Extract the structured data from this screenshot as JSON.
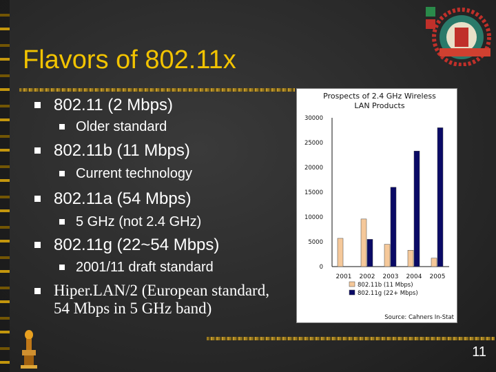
{
  "slide": {
    "title": "Flavors of 802.11x",
    "page_number": "11",
    "bullets": [
      {
        "text": "802.11 (2 Mbps)",
        "sub": "Older standard"
      },
      {
        "text": "802.11b (11 Mbps)",
        "sub": "Current technology"
      },
      {
        "text": "802.11a (54 Mbps)",
        "sub": "5 GHz (not 2.4 GHz)"
      },
      {
        "text": "802.11g (22~54 Mbps)",
        "sub": "2001/11 draft standard"
      }
    ],
    "last_bullet_line1": "Hiper.LAN/2 (European standard,",
    "last_bullet_line2": "54 Mbps in 5 GHz band)"
  },
  "chart_data": {
    "type": "bar",
    "title_line1": "Prospects of 2.4 GHz Wireless",
    "title_line2": "LAN Products",
    "categories": [
      "2001",
      "2002",
      "2003",
      "2004",
      "2005"
    ],
    "series": [
      {
        "name": "802.11b (11 Mbps)",
        "color": "#f5c89a",
        "values": [
          5700,
          9600,
          4500,
          3300,
          1700
        ]
      },
      {
        "name": "802.11g (22+ Mbps)",
        "color": "#0a0a66",
        "values": [
          0,
          5500,
          16000,
          23300,
          28000
        ]
      }
    ],
    "yticks": [
      "30000",
      "25000",
      "20000",
      "15000",
      "10000",
      "5000",
      "0"
    ],
    "ylim": [
      0,
      30000
    ],
    "source": "Source: Cahners In-Stat",
    "legend_position": "bottom"
  }
}
